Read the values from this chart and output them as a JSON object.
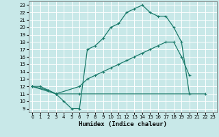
{
  "xlabel": "Humidex (Indice chaleur)",
  "bg_color": "#c8e8e8",
  "grid_color": "#ffffff",
  "line_color": "#1a7a6a",
  "xlim": [
    -0.5,
    23.5
  ],
  "ylim": [
    8.5,
    23.5
  ],
  "xticks": [
    0,
    1,
    2,
    3,
    4,
    5,
    6,
    7,
    8,
    9,
    10,
    11,
    12,
    13,
    14,
    15,
    16,
    17,
    18,
    19,
    20,
    21,
    22,
    23
  ],
  "yticks": [
    9,
    10,
    11,
    12,
    13,
    14,
    15,
    16,
    17,
    18,
    19,
    20,
    21,
    22,
    23
  ],
  "line1_x": [
    0,
    1,
    2,
    3,
    4,
    5,
    6,
    7,
    8,
    9,
    10,
    11,
    12,
    13,
    14,
    15,
    16,
    17,
    18,
    19,
    20
  ],
  "line1_y": [
    12,
    12,
    11.5,
    11,
    10,
    9,
    9,
    17,
    17.5,
    18.5,
    20,
    20.5,
    22,
    22.5,
    23,
    22,
    21.5,
    21.5,
    20,
    18,
    11
  ],
  "line2_x": [
    0,
    2,
    3,
    6,
    7,
    8,
    9,
    10,
    11,
    12,
    13,
    14,
    15,
    16,
    17,
    18,
    19,
    20
  ],
  "line2_y": [
    12,
    11.5,
    11,
    12,
    13,
    13.5,
    14,
    14.5,
    15,
    15.5,
    16,
    16.5,
    17,
    17.5,
    18,
    18,
    16,
    13.5
  ],
  "line3_x": [
    0,
    3,
    6,
    22
  ],
  "line3_y": [
    12,
    11,
    11,
    11
  ]
}
